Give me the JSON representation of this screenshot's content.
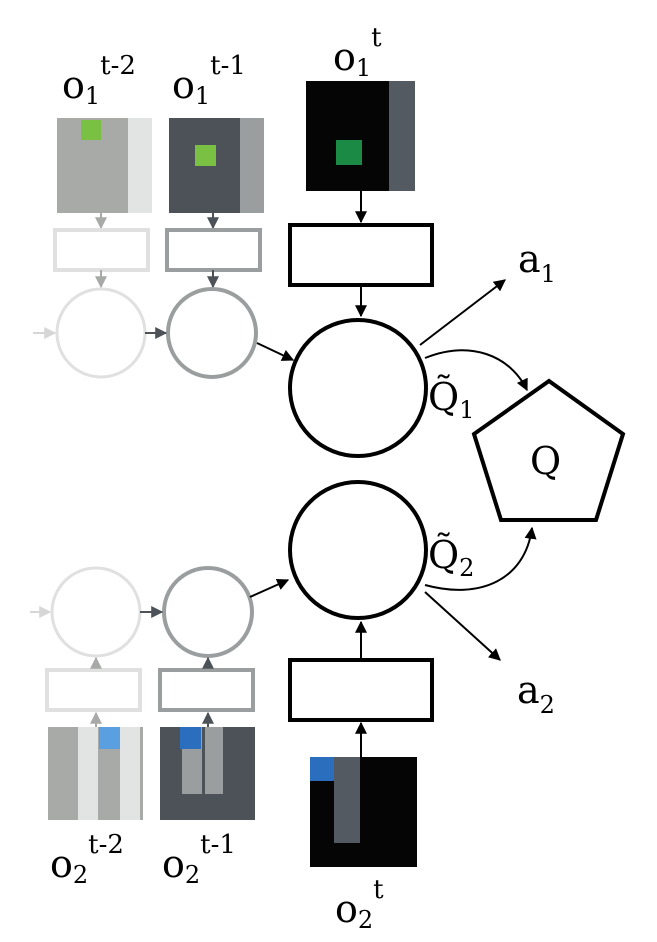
{
  "agent1": {
    "obs_labels": [
      {
        "base": "o",
        "sub": "1",
        "sup": "t-2"
      },
      {
        "base": "o",
        "sub": "1",
        "sup": "t-1"
      },
      {
        "base": "o",
        "sub": "1",
        "sup": "t"
      }
    ],
    "action": {
      "base": "a",
      "sub": "1"
    },
    "q": {
      "base": "Q̃",
      "sub": "1"
    }
  },
  "agent2": {
    "obs_labels": [
      {
        "base": "o",
        "sub": "2",
        "sup": "t-2"
      },
      {
        "base": "o",
        "sub": "2",
        "sup": "t-1"
      },
      {
        "base": "o",
        "sub": "2",
        "sup": "t"
      }
    ],
    "action": {
      "base": "a",
      "sub": "2"
    },
    "q": {
      "base": "Q̃",
      "sub": "2"
    }
  },
  "mixer": {
    "label": "Q"
  },
  "colors": {
    "faded": "#d6d6d6",
    "mid": "#9a9e9e",
    "current": "#000000",
    "agent1_marker": "#1a8a45",
    "agent1_marker_faded": "#7ac143",
    "agent2_marker": "#2a6ebd",
    "agent2_marker_faded": "#5aa0e0",
    "obs_light_bg": "#a7aaa7",
    "obs_mid_bg": "#4d5258",
    "obs_dark_bg": "#050505",
    "obs_light_wall": "#e2e3e3",
    "obs_mid_wall": "#9a9e9e",
    "obs_dark_wall": "#545a62"
  }
}
